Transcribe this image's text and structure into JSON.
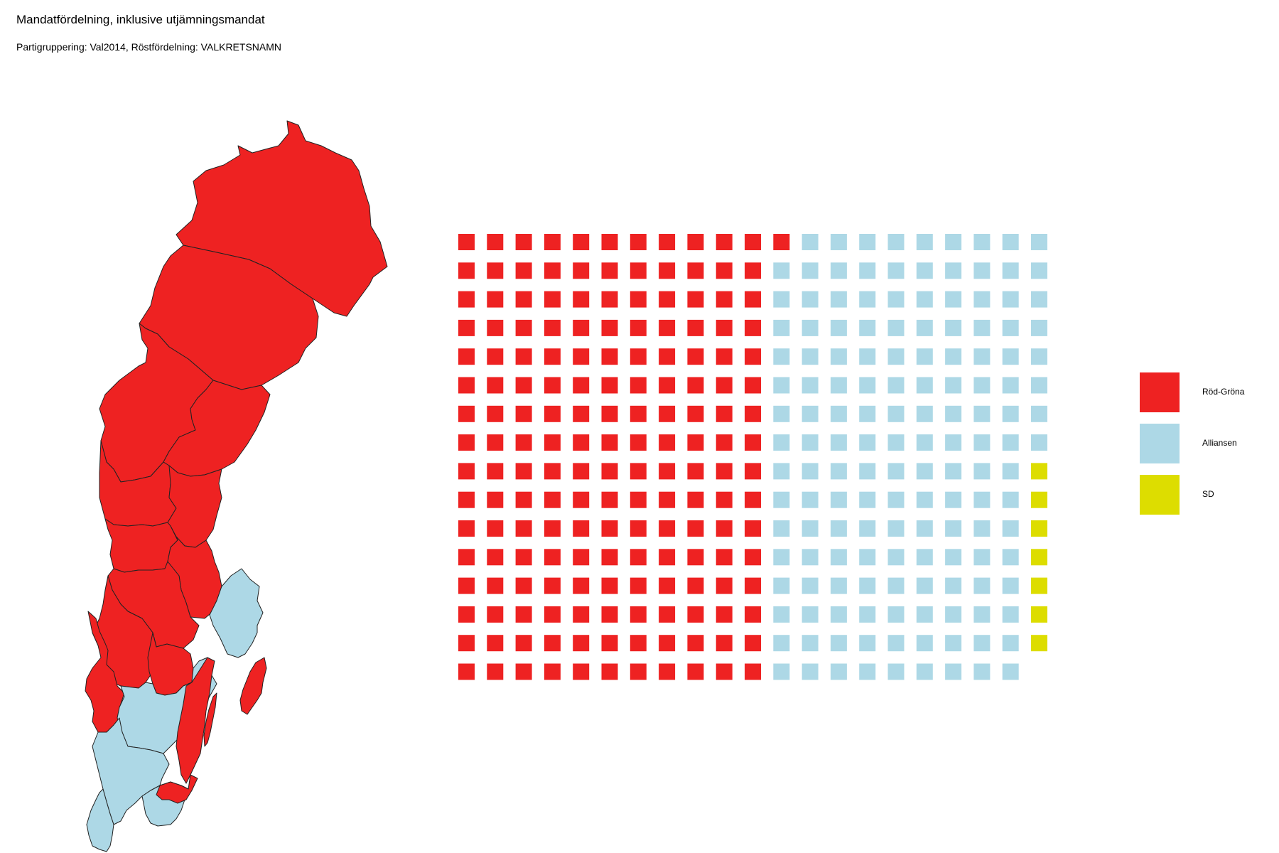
{
  "title": "Mandatfördelning, inklusive utjämningsmandat",
  "subtitle": "Partigruppering: Val2014, Röstfördelning: VALKRETSNAMN",
  "colors": {
    "rod_grona": "#ee2222",
    "alliansen": "#add8e6",
    "sd": "#dddd00",
    "border": "#222222"
  },
  "chart_data": [
    {
      "type": "map",
      "description_of_fill": "Constituencies coloured by winning party grouping",
      "region_winners": [
        {
          "region": "north-1",
          "group": "Röd-Gröna"
        },
        {
          "region": "north-2",
          "group": "Röd-Gröna"
        },
        {
          "region": "north-3",
          "group": "Röd-Gröna"
        },
        {
          "region": "north-4",
          "group": "Röd-Gröna"
        },
        {
          "region": "mid-1",
          "group": "Röd-Gröna"
        },
        {
          "region": "mid-2",
          "group": "Röd-Gröna"
        },
        {
          "region": "mid-3",
          "group": "Röd-Gröna"
        },
        {
          "region": "mid-4",
          "group": "Röd-Gröna"
        },
        {
          "region": "mid-5",
          "group": "Röd-Gröna"
        },
        {
          "region": "mid-6",
          "group": "Röd-Gröna"
        },
        {
          "region": "mid-7",
          "group": "Röd-Gröna"
        },
        {
          "region": "east-1",
          "group": "Alliansen"
        },
        {
          "region": "west-1",
          "group": "Röd-Gröna"
        },
        {
          "region": "south-1",
          "group": "Alliansen"
        },
        {
          "region": "south-2",
          "group": "Alliansen"
        },
        {
          "region": "south-3",
          "group": "Alliansen"
        },
        {
          "region": "south-4",
          "group": "Röd-Gröna"
        },
        {
          "region": "south-5",
          "group": "Röd-Gröna"
        },
        {
          "region": "island-1",
          "group": "Röd-Gröna"
        },
        {
          "region": "island-2",
          "group": "Röd-Gröna"
        },
        {
          "region": "south-6",
          "group": "Alliansen"
        }
      ]
    },
    {
      "type": "waffle",
      "rows": 16,
      "fill_order": "column-major, top to bottom",
      "series": [
        {
          "name": "Röd-Gröna",
          "values": [
            177
          ]
        },
        {
          "name": "Alliansen",
          "values": [
            151
          ]
        },
        {
          "name": "SD",
          "values": [
            7
          ]
        }
      ],
      "column_offsets": [
        0,
        0,
        0,
        0,
        0,
        0,
        0,
        0,
        0,
        0,
        0,
        0,
        0,
        0,
        0,
        0,
        0,
        0,
        0,
        0,
        0,
        3
      ],
      "legend": "right"
    }
  ],
  "legend": {
    "items": [
      {
        "label": "Röd-Gröna",
        "color": "#ee2222"
      },
      {
        "label": "Alliansen",
        "color": "#add8e6"
      },
      {
        "label": "SD",
        "color": "#dddd00"
      }
    ]
  }
}
